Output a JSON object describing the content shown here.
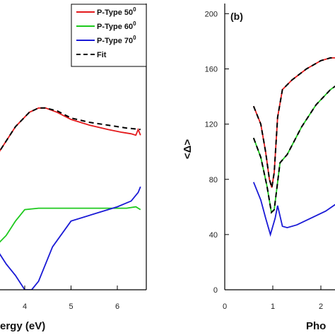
{
  "chart_data": [
    {
      "panel": "a",
      "type": "line",
      "xlabel": "Energy (eV)",
      "xlabel_visible": "ergy (eV)",
      "ylabel": "",
      "x_ticks": [
        4,
        5,
        6
      ],
      "xlim": [
        2.5,
        6.6
      ],
      "ylim": [
        0,
        1
      ],
      "legend_position": "top-right",
      "series": [
        {
          "name": "P-Type 50",
          "color": "#e41a1c",
          "dash": "solid",
          "x": [
            2.5,
            3.0,
            3.4,
            3.8,
            4.1,
            4.3,
            4.45,
            4.7,
            5.0,
            5.4,
            5.8,
            6.1,
            6.3,
            6.4,
            6.45,
            6.5
          ],
          "y": [
            0.39,
            0.39,
            0.47,
            0.57,
            0.62,
            0.635,
            0.635,
            0.62,
            0.595,
            0.575,
            0.56,
            0.55,
            0.545,
            0.54,
            0.56,
            0.54
          ]
        },
        {
          "name": "P-Type 60",
          "color": "#1ec91e",
          "dash": "solid",
          "x": [
            2.5,
            3.0,
            3.3,
            3.6,
            3.8,
            4.0,
            4.3,
            5.0,
            5.8,
            6.2,
            6.4,
            6.5
          ],
          "y": [
            0.12,
            0.12,
            0.14,
            0.19,
            0.24,
            0.28,
            0.285,
            0.285,
            0.285,
            0.285,
            0.29,
            0.28
          ]
        },
        {
          "name": "P-Type 70",
          "color": "#1a1ad6",
          "dash": "solid",
          "x": [
            2.5,
            2.8,
            3.1,
            3.4,
            3.6,
            3.8,
            4.0,
            4.15,
            4.3,
            4.6,
            5.0,
            5.6,
            6.0,
            6.3,
            6.45,
            6.5
          ],
          "y": [
            0.16,
            0.17,
            0.17,
            0.14,
            0.09,
            0.05,
            0.0,
            0.0,
            0.03,
            0.15,
            0.24,
            0.27,
            0.29,
            0.31,
            0.34,
            0.36
          ]
        },
        {
          "name": "Fit",
          "color": "#000000",
          "dash": "dashed",
          "x": [
            2.5,
            3.0,
            3.4,
            3.8,
            4.1,
            4.3,
            4.45,
            4.7,
            5.0,
            5.4,
            5.8,
            6.2,
            6.5
          ],
          "y": [
            0.39,
            0.39,
            0.47,
            0.57,
            0.62,
            0.635,
            0.635,
            0.625,
            0.6,
            0.585,
            0.575,
            0.565,
            0.56
          ]
        }
      ],
      "legend": [
        {
          "label": "P-Type 50",
          "sup": "0",
          "color": "#e41a1c",
          "dash": "solid"
        },
        {
          "label": "P-Type 60",
          "sup": "0",
          "color": "#1ec91e",
          "dash": "solid"
        },
        {
          "label": "P-Type 70",
          "sup": "0",
          "color": "#1a1ad6",
          "dash": "solid"
        },
        {
          "label": "Fit",
          "sup": "",
          "color": "#000000",
          "dash": "dashed"
        }
      ]
    },
    {
      "panel": "b",
      "type": "line",
      "panel_label": "(b)",
      "ylabel": "<Δ>",
      "xlabel_visible": "Pho",
      "x_ticks": [
        0,
        1,
        2
      ],
      "y_ticks": [
        0,
        40,
        80,
        120,
        160,
        200
      ],
      "xlim": [
        0,
        2.5
      ],
      "ylim": [
        0,
        210
      ],
      "series": [
        {
          "name": "",
          "color": "#e41a1c",
          "dash": "solid",
          "x": [
            0.6,
            0.75,
            0.85,
            0.93,
            0.98,
            1.03,
            1.1,
            1.2,
            1.4,
            1.7,
            2.0,
            2.2,
            2.4,
            2.5
          ],
          "y": [
            133,
            120,
            100,
            80,
            74,
            85,
            125,
            145,
            152,
            160,
            166,
            168,
            168,
            168
          ]
        },
        {
          "name": "",
          "color": "#1ec91e",
          "dash": "solid",
          "x": [
            0.6,
            0.75,
            0.88,
            0.97,
            1.03,
            1.15,
            1.3,
            1.6,
            1.9,
            2.2,
            2.4,
            2.5
          ],
          "y": [
            110,
            96,
            75,
            56,
            58,
            92,
            98,
            118,
            134,
            145,
            150,
            152
          ]
        },
        {
          "name": "",
          "color": "#1a1ad6",
          "dash": "solid",
          "x": [
            0.6,
            0.75,
            0.85,
            0.95,
            1.05,
            1.1,
            1.2,
            1.3,
            1.5,
            1.8,
            2.1,
            2.35,
            2.5
          ],
          "y": [
            78,
            65,
            52,
            40,
            52,
            61,
            46,
            45,
            47,
            52,
            57,
            63,
            68
          ]
        },
        {
          "name": "",
          "color": "#000000",
          "dash": "dashed",
          "x": [
            0.6,
            0.75,
            0.85,
            0.93,
            0.98,
            1.03,
            1.1,
            1.2,
            1.4,
            1.7,
            2.0,
            2.2,
            2.4,
            2.5
          ],
          "y": [
            133,
            120,
            100,
            80,
            74,
            85,
            125,
            145,
            152,
            160,
            166,
            168,
            168,
            168
          ]
        },
        {
          "name": "",
          "color": "#000000",
          "dash": "dashed",
          "x": [
            0.6,
            0.75,
            0.88,
            0.97,
            1.03,
            1.15,
            1.3,
            1.6,
            1.9,
            2.2,
            2.4,
            2.5
          ],
          "y": [
            110,
            96,
            75,
            56,
            58,
            92,
            98,
            118,
            134,
            145,
            150,
            152
          ]
        }
      ]
    }
  ]
}
